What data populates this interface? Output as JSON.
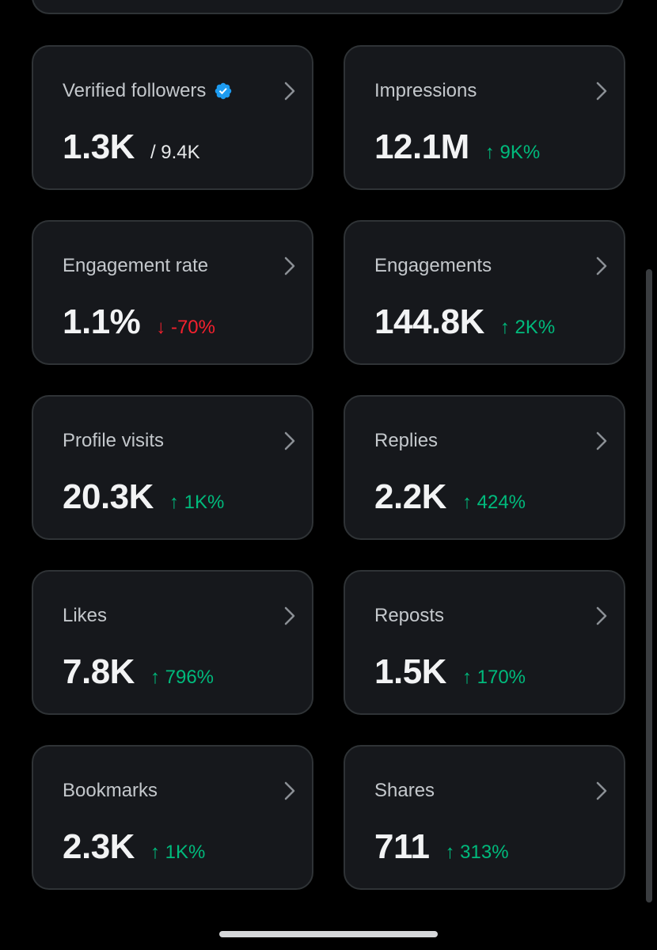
{
  "cards": [
    {
      "title": "Verified followers",
      "value": "1.3K",
      "sub_value": "/ 9.4K",
      "verified": true
    },
    {
      "title": "Impressions",
      "value": "12.1M",
      "change": "↑ 9K%",
      "direction": "up"
    },
    {
      "title": "Engagement rate",
      "value": "1.1%",
      "change": "↓ -70%",
      "direction": "down"
    },
    {
      "title": "Engagements",
      "value": "144.8K",
      "change": "↑ 2K%",
      "direction": "up"
    },
    {
      "title": "Profile visits",
      "value": "20.3K",
      "change": "↑ 1K%",
      "direction": "up"
    },
    {
      "title": "Replies",
      "value": "2.2K",
      "change": "↑ 424%",
      "direction": "up"
    },
    {
      "title": "Likes",
      "value": "7.8K",
      "change": "↑ 796%",
      "direction": "up"
    },
    {
      "title": "Reposts",
      "value": "1.5K",
      "change": "↑ 170%",
      "direction": "up"
    },
    {
      "title": "Bookmarks",
      "value": "2.3K",
      "change": "↑ 1K%",
      "direction": "up"
    },
    {
      "title": "Shares",
      "value": "711",
      "change": "↑ 313%",
      "direction": "up"
    }
  ],
  "icons": {
    "chevron": "chevron-right-icon",
    "verified": "verified-badge-icon"
  },
  "colors": {
    "background": "#000000",
    "card": "#16181c",
    "border": "#2f3336",
    "up": "#00ba7c",
    "down": "#f4212e",
    "verified": "#1d9bf0"
  }
}
